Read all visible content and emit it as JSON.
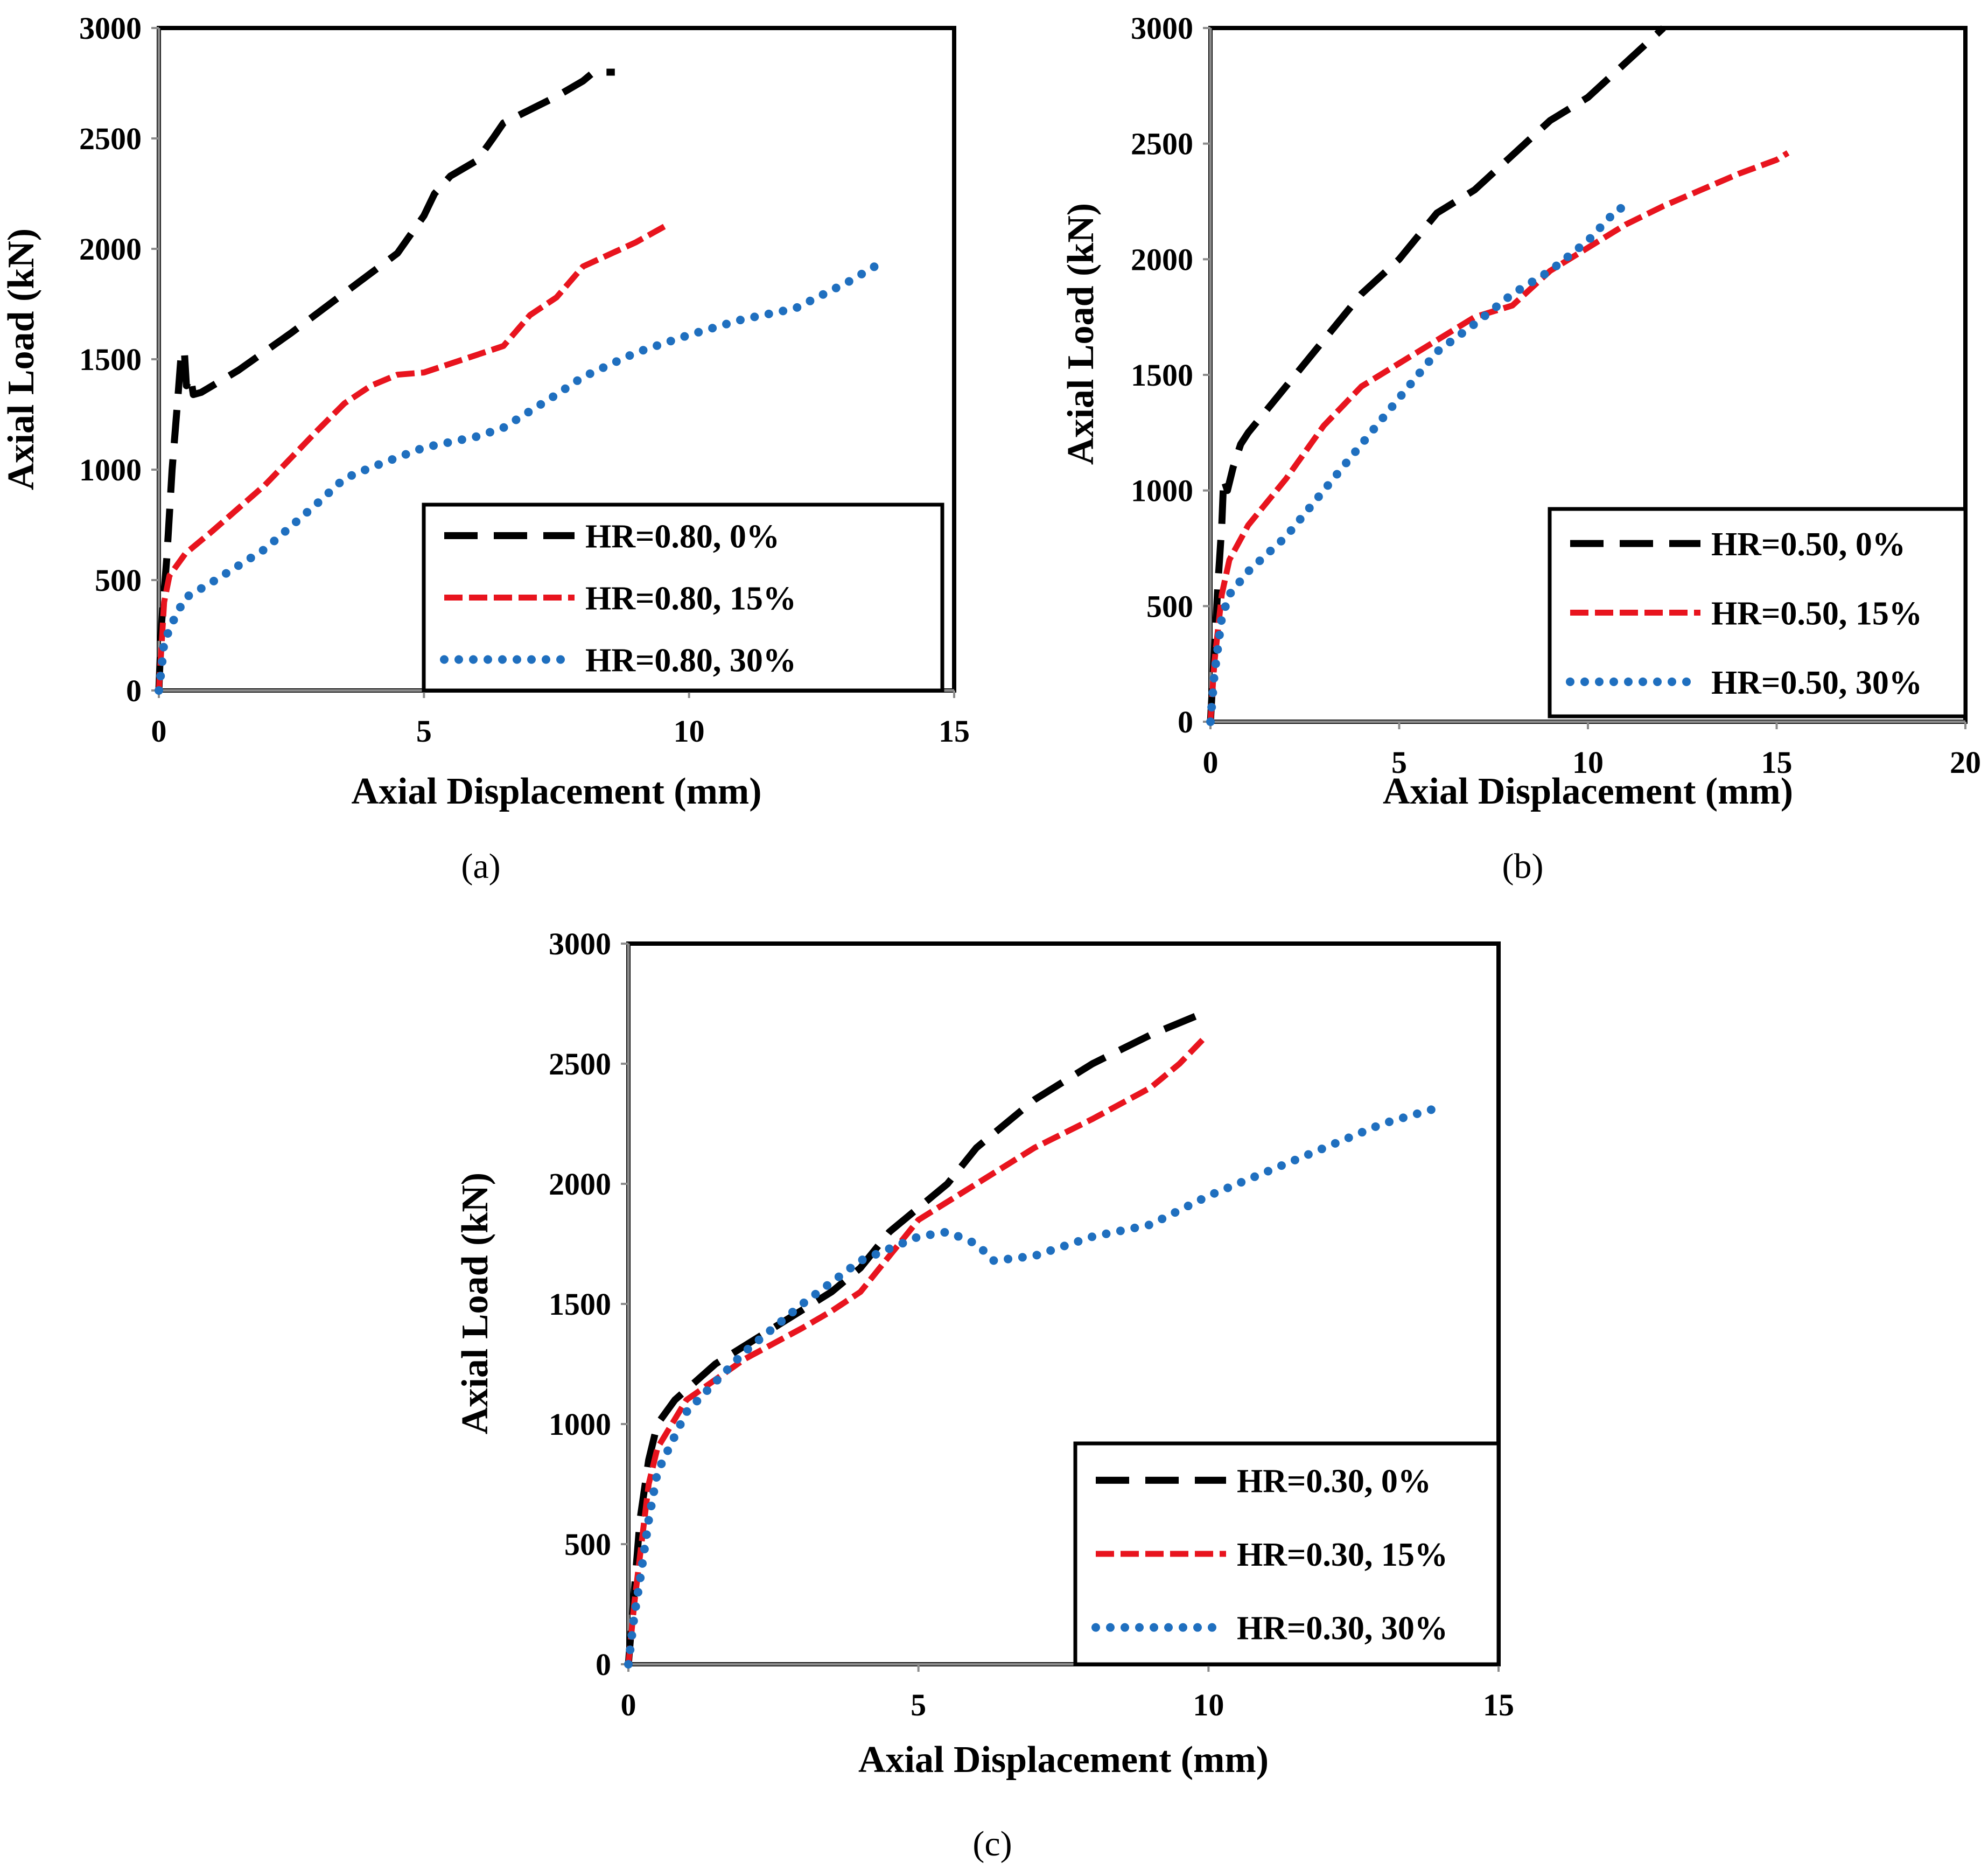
{
  "chart_data": [
    {
      "panel": "a",
      "caption": "(a)",
      "type": "line",
      "xlabel": "Axial Displacement (mm)",
      "ylabel": "Axial Load (kN)",
      "xlim": [
        0,
        15
      ],
      "ylim": [
        0,
        3000
      ],
      "xticks": [
        0,
        5,
        10,
        15
      ],
      "yticks": [
        0,
        500,
        1000,
        1500,
        2000,
        2500,
        3000
      ],
      "grid": false,
      "legend_position": "bottom-right",
      "series": [
        {
          "name": "HR=0.80, 0%",
          "color": "#000000",
          "style": "long-dash",
          "points": [
            [
              0,
              0
            ],
            [
              0.05,
              300
            ],
            [
              0.15,
              600
            ],
            [
              0.25,
              1000
            ],
            [
              0.35,
              1300
            ],
            [
              0.42,
              1520
            ],
            [
              0.48,
              1540
            ],
            [
              0.52,
              1380
            ],
            [
              0.6,
              1420
            ],
            [
              0.65,
              1340
            ],
            [
              0.8,
              1350
            ],
            [
              1.5,
              1450
            ],
            [
              2.5,
              1620
            ],
            [
              3.5,
              1800
            ],
            [
              4.5,
              1980
            ],
            [
              5.0,
              2150
            ],
            [
              5.2,
              2250
            ],
            [
              5.5,
              2330
            ],
            [
              6.0,
              2400
            ],
            [
              6.3,
              2500
            ],
            [
              6.5,
              2570
            ],
            [
              7.0,
              2630
            ],
            [
              7.5,
              2690
            ],
            [
              8.0,
              2760
            ],
            [
              8.2,
              2800
            ],
            [
              8.6,
              2800
            ]
          ]
        },
        {
          "name": "HR=0.80, 15%",
          "color": "#e8141e",
          "style": "short-dash",
          "points": [
            [
              0,
              0
            ],
            [
              0.05,
              200
            ],
            [
              0.1,
              400
            ],
            [
              0.2,
              520
            ],
            [
              0.5,
              620
            ],
            [
              1.0,
              720
            ],
            [
              2.0,
              930
            ],
            [
              3.0,
              1180
            ],
            [
              3.5,
              1300
            ],
            [
              4.0,
              1380
            ],
            [
              4.5,
              1430
            ],
            [
              5.0,
              1440
            ],
            [
              5.5,
              1480
            ],
            [
              6.5,
              1560
            ],
            [
              7.0,
              1700
            ],
            [
              7.5,
              1780
            ],
            [
              8.0,
              1920
            ],
            [
              9.0,
              2030
            ],
            [
              9.6,
              2110
            ]
          ]
        },
        {
          "name": "HR=0.80, 30%",
          "color": "#1f6fbf",
          "style": "dotted",
          "points": [
            [
              0,
              0
            ],
            [
              0.05,
              100
            ],
            [
              0.1,
              220
            ],
            [
              0.3,
              330
            ],
            [
              0.5,
              420
            ],
            [
              1.0,
              490
            ],
            [
              2.0,
              640
            ],
            [
              3.0,
              850
            ],
            [
              3.5,
              960
            ],
            [
              4.0,
              1010
            ],
            [
              5.0,
              1100
            ],
            [
              6.0,
              1150
            ],
            [
              6.5,
              1190
            ],
            [
              7.5,
              1340
            ],
            [
              8.0,
              1420
            ],
            [
              9.0,
              1530
            ],
            [
              10.0,
              1610
            ],
            [
              11.0,
              1680
            ],
            [
              12.0,
              1730
            ],
            [
              13.0,
              1850
            ],
            [
              13.5,
              1920
            ]
          ]
        }
      ]
    },
    {
      "panel": "b",
      "caption": "(b)",
      "type": "line",
      "xlabel": "Axial Displacement (mm)",
      "ylabel": "Axial Load (kN)",
      "xlim": [
        0,
        20
      ],
      "ylim": [
        0,
        3000
      ],
      "xticks": [
        0,
        5,
        10,
        15,
        20
      ],
      "yticks": [
        0,
        500,
        1000,
        1500,
        2000,
        2500,
        3000
      ],
      "grid": false,
      "legend_position": "bottom-right",
      "series": [
        {
          "name": "HR=0.50, 0%",
          "color": "#000000",
          "style": "long-dash",
          "points": [
            [
              0,
              0
            ],
            [
              0.1,
              300
            ],
            [
              0.2,
              600
            ],
            [
              0.3,
              850
            ],
            [
              0.35,
              1050
            ],
            [
              0.45,
              1000
            ],
            [
              0.6,
              1100
            ],
            [
              0.8,
              1200
            ],
            [
              1.0,
              1250
            ],
            [
              2.0,
              1450
            ],
            [
              3.0,
              1650
            ],
            [
              4.0,
              1850
            ],
            [
              5.0,
              2000
            ],
            [
              6.0,
              2200
            ],
            [
              7.0,
              2300
            ],
            [
              8.0,
              2450
            ],
            [
              9.0,
              2600
            ],
            [
              10.0,
              2700
            ],
            [
              11.0,
              2850
            ],
            [
              12.0,
              3000
            ]
          ]
        },
        {
          "name": "HR=0.50, 15%",
          "color": "#e8141e",
          "style": "short-dash",
          "points": [
            [
              0,
              0
            ],
            [
              0.1,
              250
            ],
            [
              0.3,
              550
            ],
            [
              0.5,
              700
            ],
            [
              1.0,
              850
            ],
            [
              2.0,
              1050
            ],
            [
              3.0,
              1280
            ],
            [
              4.0,
              1450
            ],
            [
              5.0,
              1550
            ],
            [
              6.0,
              1650
            ],
            [
              7.0,
              1750
            ],
            [
              8.0,
              1800
            ],
            [
              9.0,
              1950
            ],
            [
              10.0,
              2050
            ],
            [
              11.0,
              2150
            ],
            [
              12.0,
              2230
            ],
            [
              13.0,
              2300
            ],
            [
              14.0,
              2370
            ],
            [
              15.0,
              2430
            ],
            [
              15.3,
              2460
            ]
          ]
        },
        {
          "name": "HR=0.50, 30%",
          "color": "#1f6fbf",
          "style": "dotted",
          "points": [
            [
              0,
              0
            ],
            [
              0.1,
              200
            ],
            [
              0.3,
              450
            ],
            [
              0.5,
              550
            ],
            [
              1.0,
              650
            ],
            [
              2.0,
              800
            ],
            [
              3.0,
              1000
            ],
            [
              4.0,
              1200
            ],
            [
              5.0,
              1400
            ],
            [
              6.0,
              1600
            ],
            [
              7.0,
              1720
            ],
            [
              8.0,
              1850
            ],
            [
              9.0,
              1950
            ],
            [
              10.0,
              2080
            ],
            [
              10.8,
              2220
            ],
            [
              11.2,
              2220
            ]
          ]
        }
      ]
    },
    {
      "panel": "c",
      "caption": "(c)",
      "type": "line",
      "xlabel": "Axial Displacement (mm)",
      "ylabel": "Axial Load (kN)",
      "xlim": [
        0,
        15
      ],
      "ylim": [
        0,
        3000
      ],
      "xticks": [
        0,
        5,
        10,
        15
      ],
      "yticks": [
        0,
        500,
        1000,
        1500,
        2000,
        2500,
        3000
      ],
      "grid": false,
      "legend_position": "bottom-right",
      "series": [
        {
          "name": "HR=0.30, 0%",
          "color": "#000000",
          "style": "long-dash",
          "points": [
            [
              0,
              0
            ],
            [
              0.1,
              300
            ],
            [
              0.2,
              600
            ],
            [
              0.35,
              850
            ],
            [
              0.5,
              1000
            ],
            [
              0.8,
              1100
            ],
            [
              1.5,
              1250
            ],
            [
              2.5,
              1400
            ],
            [
              3.5,
              1550
            ],
            [
              4.0,
              1650
            ],
            [
              4.5,
              1800
            ],
            [
              5.0,
              1900
            ],
            [
              5.5,
              2000
            ],
            [
              6.0,
              2150
            ],
            [
              7.0,
              2350
            ],
            [
              8.0,
              2500
            ],
            [
              9.0,
              2620
            ],
            [
              9.8,
              2700
            ]
          ]
        },
        {
          "name": "HR=0.30, 15%",
          "color": "#e8141e",
          "style": "short-dash",
          "points": [
            [
              0,
              0
            ],
            [
              0.1,
              250
            ],
            [
              0.2,
              450
            ],
            [
              0.35,
              750
            ],
            [
              0.5,
              900
            ],
            [
              1.0,
              1100
            ],
            [
              2.0,
              1270
            ],
            [
              3.0,
              1400
            ],
            [
              3.5,
              1470
            ],
            [
              4.0,
              1550
            ],
            [
              4.5,
              1700
            ],
            [
              5.0,
              1850
            ],
            [
              6.0,
              2000
            ],
            [
              7.0,
              2150
            ],
            [
              8.0,
              2270
            ],
            [
              9.0,
              2400
            ],
            [
              9.5,
              2500
            ],
            [
              9.9,
              2600
            ]
          ]
        },
        {
          "name": "HR=0.30, 30%",
          "color": "#1f6fbf",
          "style": "dotted",
          "points": [
            [
              0,
              0
            ],
            [
              0.1,
              200
            ],
            [
              0.2,
              350
            ],
            [
              0.35,
              600
            ],
            [
              0.5,
              800
            ],
            [
              1.0,
              1050
            ],
            [
              2.0,
              1300
            ],
            [
              3.0,
              1500
            ],
            [
              4.0,
              1680
            ],
            [
              4.5,
              1730
            ],
            [
              5.0,
              1780
            ],
            [
              5.5,
              1800
            ],
            [
              6.0,
              1750
            ],
            [
              6.3,
              1680
            ],
            [
              7.0,
              1700
            ],
            [
              8.0,
              1780
            ],
            [
              9.0,
              1830
            ],
            [
              10.0,
              1950
            ],
            [
              11.0,
              2050
            ],
            [
              12.0,
              2150
            ],
            [
              13.0,
              2250
            ],
            [
              14.0,
              2320
            ]
          ]
        }
      ]
    }
  ]
}
